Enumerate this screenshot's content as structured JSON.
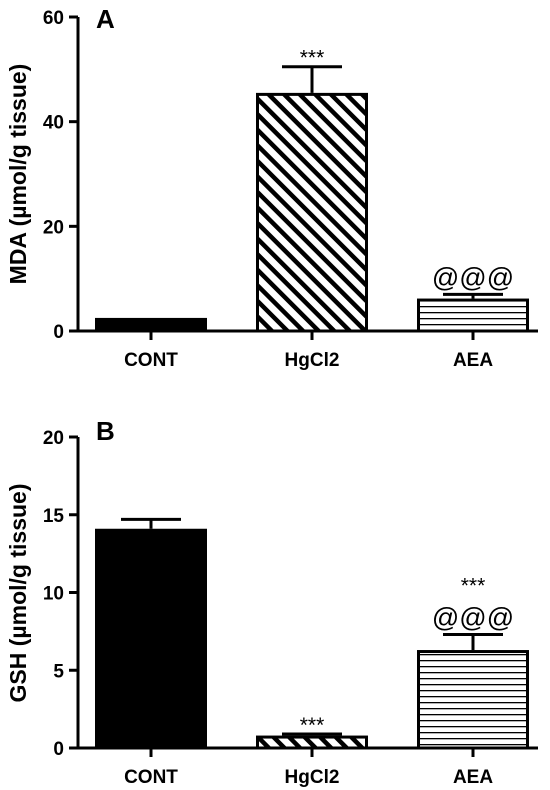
{
  "chart_data": [
    {
      "type": "bar",
      "panel": "A",
      "ylabel": "MDA (µmol/g tissue)",
      "ylim": [
        0,
        60
      ],
      "yticks": [
        0,
        20,
        40,
        60
      ],
      "categories": [
        "CONT",
        "HgCl2",
        "AEA"
      ],
      "values": [
        2.5,
        45.5,
        6.2
      ],
      "errors": [
        0,
        5.0,
        0.8
      ],
      "annotations": [
        [
          "",
          ""
        ],
        [
          "***",
          ""
        ],
        [
          "@@@",
          ""
        ]
      ],
      "fills": [
        "solid",
        "diagonal",
        "horizontal"
      ]
    },
    {
      "type": "bar",
      "panel": "B",
      "ylabel": "GSH (µmol/g tissue)",
      "ylim": [
        0,
        20
      ],
      "yticks": [
        0,
        5,
        10,
        15,
        20
      ],
      "categories": [
        "CONT",
        "HgCl2",
        "AEA"
      ],
      "values": [
        14.1,
        0.8,
        6.3
      ],
      "errors": [
        0.6,
        0.1,
        1.0
      ],
      "annotations": [
        [
          "",
          ""
        ],
        [
          "***",
          ""
        ],
        [
          "@@@",
          "***"
        ]
      ],
      "fills": [
        "solid",
        "diagonal",
        "horizontal"
      ]
    }
  ],
  "colors": {
    "ink": "#000000",
    "background": "#ffffff"
  }
}
